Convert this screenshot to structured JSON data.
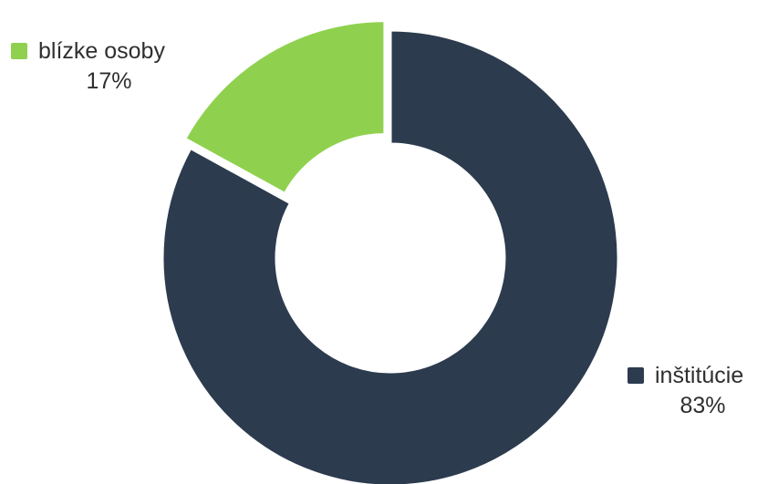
{
  "chart_data": {
    "type": "pie",
    "donut": true,
    "title": "",
    "legend": "inline-labels",
    "slices": [
      {
        "label": "inštitúcie",
        "value": 83,
        "value_label": "83%",
        "color": "#2c3b4e"
      },
      {
        "label": "blízke osoby",
        "value": 17,
        "value_label": "17%",
        "color": "#8fd14f"
      }
    ]
  }
}
